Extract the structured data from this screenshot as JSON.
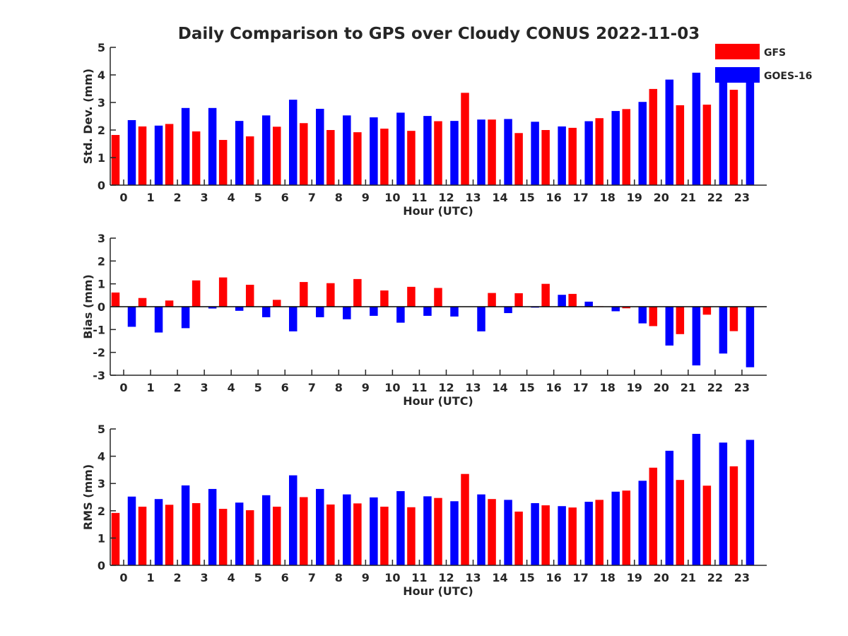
{
  "title": "Daily Comparison to GPS over Cloudy CONUS 2022-11-03",
  "legend": {
    "placement": "top-right outside",
    "entries": [
      {
        "label": "GFS",
        "color": "#ff0000"
      },
      {
        "label": "GOES-16",
        "color": "#0000ff"
      }
    ]
  },
  "chart_data": [
    {
      "type": "bar",
      "xlabel": "Hour (UTC)",
      "ylabel": "Std. Dev. (mm)",
      "ylim": [
        0,
        5
      ],
      "yticks": [
        "0",
        "1",
        "2",
        "3",
        "4",
        "5"
      ],
      "grid": false,
      "categories": [
        "0",
        "1",
        "2",
        "3",
        "4",
        "5",
        "6",
        "7",
        "8",
        "9",
        "10",
        "11",
        "12",
        "13",
        "14",
        "15",
        "16",
        "17",
        "18",
        "19",
        "20",
        "21",
        "22",
        "23"
      ],
      "series": [
        {
          "name": "GFS",
          "color": "#ff0000",
          "values": [
            1.82,
            2.13,
            2.22,
            1.95,
            1.64,
            1.77,
            2.12,
            2.25,
            2.0,
            1.92,
            2.05,
            1.97,
            2.32,
            3.35,
            2.38,
            1.89,
            2.0,
            2.08,
            2.43,
            2.76,
            3.49,
            2.9,
            2.92,
            3.46
          ]
        },
        {
          "name": "GOES-16",
          "color": "#0000ff",
          "values": [
            2.36,
            2.16,
            2.8,
            2.8,
            2.33,
            2.53,
            3.1,
            2.77,
            2.53,
            2.46,
            2.63,
            2.51,
            2.33,
            2.38,
            2.4,
            2.3,
            2.13,
            2.32,
            2.69,
            3.02,
            3.83,
            4.08,
            3.98,
            3.95
          ]
        }
      ]
    },
    {
      "type": "bar",
      "xlabel": "Hour (UTC)",
      "ylabel": "Bias (mm)",
      "ylim": [
        -3,
        3
      ],
      "yticks": [
        "-3",
        "-2",
        "-1",
        "0",
        "1",
        "2",
        "3"
      ],
      "grid": false,
      "zero_line": true,
      "categories": [
        "0",
        "1",
        "2",
        "3",
        "4",
        "5",
        "6",
        "7",
        "8",
        "9",
        "10",
        "11",
        "12",
        "13",
        "14",
        "15",
        "16",
        "17",
        "18",
        "19",
        "20",
        "21",
        "22",
        "23"
      ],
      "series": [
        {
          "name": "GFS",
          "color": "#ff0000",
          "values": [
            0.62,
            0.38,
            0.27,
            1.15,
            1.28,
            0.96,
            0.3,
            1.08,
            1.03,
            1.21,
            0.71,
            0.87,
            0.82,
            0.0,
            0.6,
            0.59,
            1.0,
            0.56,
            0.02,
            -0.07,
            -0.85,
            -1.2,
            -0.35,
            -1.07
          ]
        },
        {
          "name": "GOES-16",
          "color": "#0000ff",
          "values": [
            -0.88,
            -1.13,
            -0.94,
            -0.08,
            -0.18,
            -0.46,
            -1.08,
            -0.46,
            -0.55,
            -0.4,
            -0.7,
            -0.4,
            -0.43,
            -1.08,
            -0.28,
            -0.04,
            0.52,
            0.22,
            -0.2,
            -0.73,
            -1.7,
            -2.57,
            -2.05,
            -2.65
          ]
        }
      ]
    },
    {
      "type": "bar",
      "xlabel": "Hour (UTC)",
      "ylabel": "RMS (mm)",
      "ylim": [
        0,
        5
      ],
      "yticks": [
        "0",
        "1",
        "2",
        "3",
        "4",
        "5"
      ],
      "grid": false,
      "categories": [
        "0",
        "1",
        "2",
        "3",
        "4",
        "5",
        "6",
        "7",
        "8",
        "9",
        "10",
        "11",
        "12",
        "13",
        "14",
        "15",
        "16",
        "17",
        "18",
        "19",
        "20",
        "21",
        "22",
        "23"
      ],
      "series": [
        {
          "name": "GFS",
          "color": "#ff0000",
          "values": [
            1.92,
            2.15,
            2.22,
            2.28,
            2.07,
            2.02,
            2.15,
            2.5,
            2.23,
            2.27,
            2.15,
            2.13,
            2.47,
            3.35,
            2.43,
            1.97,
            2.2,
            2.12,
            2.4,
            2.74,
            3.58,
            3.13,
            2.92,
            3.63
          ]
        },
        {
          "name": "GOES-16",
          "color": "#0000ff",
          "values": [
            2.52,
            2.43,
            2.93,
            2.8,
            2.3,
            2.57,
            3.3,
            2.8,
            2.6,
            2.49,
            2.72,
            2.53,
            2.35,
            2.6,
            2.4,
            2.28,
            2.17,
            2.33,
            2.7,
            3.1,
            4.2,
            4.82,
            4.5,
            4.6
          ]
        }
      ]
    }
  ]
}
